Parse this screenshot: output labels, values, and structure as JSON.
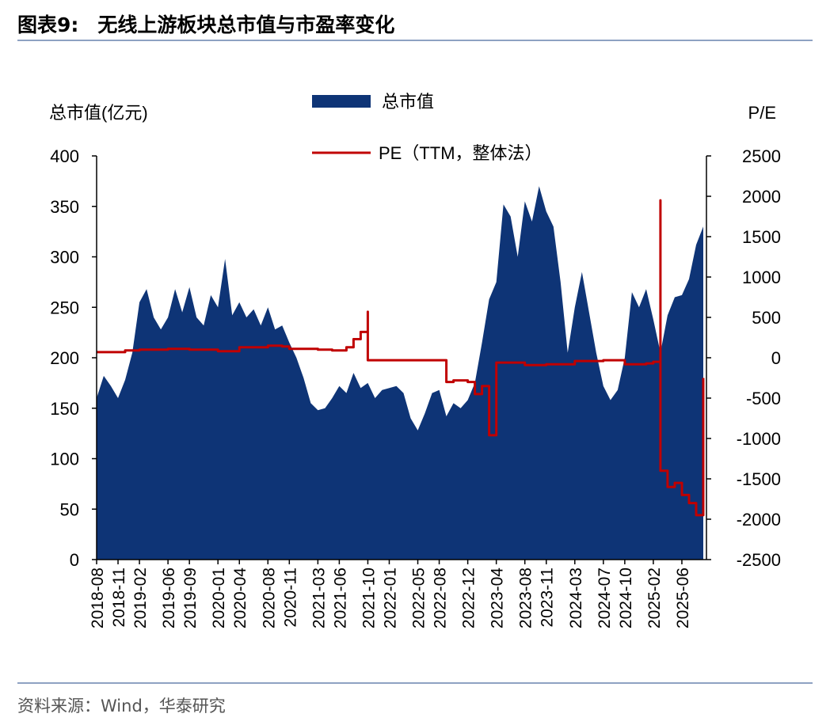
{
  "header": {
    "figure_no": "图表9:",
    "title": "无线上游板块总市值与市盈率变化"
  },
  "footer": {
    "source": "资料来源：Wind，华泰研究"
  },
  "chart_data": {
    "type": "area+line",
    "y_left_label": "总市值(亿元)",
    "y_right_label": "P/E",
    "y_left_lim": [
      0,
      400
    ],
    "y_right_lim": [
      -2500,
      2500
    ],
    "y_left_ticks": [
      "0",
      "50",
      "100",
      "150",
      "200",
      "250",
      "300",
      "350",
      "400"
    ],
    "y_right_ticks": [
      "-2500",
      "-2000",
      "-1500",
      "-1000",
      "-500",
      "0",
      "500",
      "1000",
      "1500",
      "2000",
      "2500"
    ],
    "x_tick_labels": [
      "2018-08",
      "2018-11",
      "2019-02",
      "2019-06",
      "2019-09",
      "2020-01",
      "2020-04",
      "2020-08",
      "2020-11",
      "2021-03",
      "2021-06",
      "2021-10",
      "2022-01",
      "2022-05",
      "2022-08",
      "2022-12",
      "2023-04",
      "2023-08",
      "2023-11",
      "2024-03",
      "2024-07",
      "2024-10",
      "2025-02",
      "2025-06"
    ],
    "x_range": [
      "2018-08",
      "2025-09"
    ],
    "legend": {
      "placement": "top",
      "entries": [
        "总市值",
        "PE（TTM，整体法）"
      ]
    },
    "colors": {
      "market_cap": "#0e3476",
      "pe": "#c00000",
      "axis": "#000000"
    },
    "series": [
      {
        "name": "总市值",
        "axis": "left",
        "kind": "area",
        "points": [
          [
            "2018-08",
            160
          ],
          [
            "2018-09",
            182
          ],
          [
            "2018-10",
            172
          ],
          [
            "2018-11",
            160
          ],
          [
            "2018-12",
            178
          ],
          [
            "2019-01",
            205
          ],
          [
            "2019-02",
            255
          ],
          [
            "2019-03",
            268
          ],
          [
            "2019-04",
            240
          ],
          [
            "2019-05",
            228
          ],
          [
            "2019-06",
            240
          ],
          [
            "2019-07",
            268
          ],
          [
            "2019-08",
            245
          ],
          [
            "2019-09",
            270
          ],
          [
            "2019-10",
            240
          ],
          [
            "2019-11",
            232
          ],
          [
            "2019-12",
            262
          ],
          [
            "2020-01",
            250
          ],
          [
            "2020-02",
            298
          ],
          [
            "2020-03",
            242
          ],
          [
            "2020-04",
            255
          ],
          [
            "2020-05",
            240
          ],
          [
            "2020-06",
            248
          ],
          [
            "2020-07",
            232
          ],
          [
            "2020-08",
            250
          ],
          [
            "2020-09",
            228
          ],
          [
            "2020-10",
            232
          ],
          [
            "2020-11",
            215
          ],
          [
            "2020-12",
            200
          ],
          [
            "2021-01",
            180
          ],
          [
            "2021-02",
            155
          ],
          [
            "2021-03",
            148
          ],
          [
            "2021-04",
            150
          ],
          [
            "2021-05",
            160
          ],
          [
            "2021-06",
            172
          ],
          [
            "2021-07",
            165
          ],
          [
            "2021-08",
            185
          ],
          [
            "2021-09",
            170
          ],
          [
            "2021-10",
            175
          ],
          [
            "2021-11",
            160
          ],
          [
            "2021-12",
            168
          ],
          [
            "2022-01",
            170
          ],
          [
            "2022-02",
            172
          ],
          [
            "2022-03",
            165
          ],
          [
            "2022-04",
            140
          ],
          [
            "2022-05",
            128
          ],
          [
            "2022-06",
            145
          ],
          [
            "2022-07",
            165
          ],
          [
            "2022-08",
            168
          ],
          [
            "2022-09",
            142
          ],
          [
            "2022-10",
            155
          ],
          [
            "2022-11",
            150
          ],
          [
            "2022-12",
            158
          ],
          [
            "2023-01",
            175
          ],
          [
            "2023-02",
            215
          ],
          [
            "2023-03",
            258
          ],
          [
            "2023-04",
            275
          ],
          [
            "2023-05",
            352
          ],
          [
            "2023-06",
            340
          ],
          [
            "2023-07",
            300
          ],
          [
            "2023-08",
            355
          ],
          [
            "2023-09",
            335
          ],
          [
            "2023-10",
            370
          ],
          [
            "2023-11",
            345
          ],
          [
            "2023-12",
            330
          ],
          [
            "2024-01",
            275
          ],
          [
            "2024-02",
            205
          ],
          [
            "2024-03",
            250
          ],
          [
            "2024-04",
            285
          ],
          [
            "2024-05",
            245
          ],
          [
            "2024-06",
            205
          ],
          [
            "2024-07",
            172
          ],
          [
            "2024-08",
            158
          ],
          [
            "2024-09",
            168
          ],
          [
            "2024-10",
            200
          ],
          [
            "2024-11",
            265
          ],
          [
            "2024-12",
            250
          ],
          [
            "2025-01",
            268
          ],
          [
            "2025-02",
            238
          ],
          [
            "2025-03",
            205
          ],
          [
            "2025-04",
            242
          ],
          [
            "2025-05",
            260
          ],
          [
            "2025-06",
            262
          ],
          [
            "2025-07",
            278
          ],
          [
            "2025-08",
            312
          ],
          [
            "2025-09",
            330
          ]
        ]
      },
      {
        "name": "PE（TTM，整体法）",
        "axis": "right",
        "kind": "line",
        "points": [
          [
            "2018-08",
            70
          ],
          [
            "2018-12",
            90
          ],
          [
            "2019-02",
            100
          ],
          [
            "2019-06",
            110
          ],
          [
            "2019-09",
            100
          ],
          [
            "2020-01",
            80
          ],
          [
            "2020-04",
            130
          ],
          [
            "2020-08",
            150
          ],
          [
            "2020-10",
            140
          ],
          [
            "2020-11",
            110
          ],
          [
            "2021-03",
            100
          ],
          [
            "2021-05",
            90
          ],
          [
            "2021-07",
            130
          ],
          [
            "2021-08",
            230
          ],
          [
            "2021-09",
            320
          ],
          [
            "2021-10",
            570
          ],
          [
            "2021-10",
            -30
          ],
          [
            "2022-05",
            -30
          ],
          [
            "2022-08",
            -30
          ],
          [
            "2022-09",
            -300
          ],
          [
            "2022-10",
            -280
          ],
          [
            "2022-12",
            -300
          ],
          [
            "2023-01",
            -450
          ],
          [
            "2023-02",
            -350
          ],
          [
            "2023-03",
            -960
          ],
          [
            "2023-04",
            -60
          ],
          [
            "2023-08",
            -90
          ],
          [
            "2023-11",
            -80
          ],
          [
            "2024-03",
            -40
          ],
          [
            "2024-07",
            -30
          ],
          [
            "2024-10",
            -80
          ],
          [
            "2025-01",
            -70
          ],
          [
            "2025-02",
            -50
          ],
          [
            "2025-03",
            1950
          ],
          [
            "2025-03",
            -1400
          ],
          [
            "2025-04",
            -1600
          ],
          [
            "2025-05",
            -1550
          ],
          [
            "2025-06",
            -1700
          ],
          [
            "2025-07",
            -1800
          ],
          [
            "2025-08",
            -1950
          ],
          [
            "2025-09",
            -250
          ]
        ]
      }
    ]
  }
}
